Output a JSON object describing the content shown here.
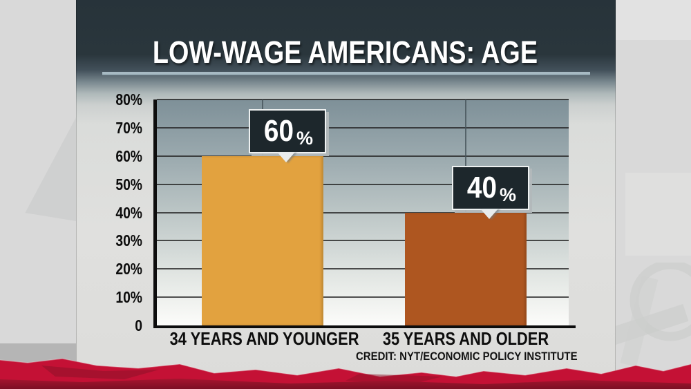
{
  "header": {
    "title": "LOW-WAGE AMERICANS: AGE"
  },
  "footer": {
    "credit": "CREDIT: NYT/ECONOMIC POLICY INSTITUTE"
  },
  "colors": {
    "panel_dark": "#2a363c",
    "divider": "#a7bac3",
    "callout_bg": "#1d272c",
    "torn_red_bright": "#c41135",
    "torn_red_dark": "#99142e",
    "bar_gold": "#e2a23f",
    "bar_rust": "#ae5620"
  },
  "chart_data": {
    "type": "bar",
    "title": "LOW-WAGE AMERICANS: AGE",
    "categories": [
      "34 YEARS AND YOUNGER",
      "35 YEARS AND OLDER"
    ],
    "values": [
      60,
      40
    ],
    "value_labels": [
      "60%",
      "40%"
    ],
    "bar_colors": [
      "#e2a23f",
      "#ae5620"
    ],
    "ylim": [
      0,
      80
    ],
    "yticks": [
      "80%",
      "70%",
      "60%",
      "50%",
      "40%",
      "30%",
      "20%",
      "10%",
      "0"
    ],
    "ytick_values": [
      80,
      70,
      60,
      50,
      40,
      30,
      20,
      10,
      0
    ],
    "xlabel": "",
    "ylabel": "",
    "grid": true,
    "legend": false,
    "source": "CREDIT: NYT/ECONOMIC POLICY INSTITUTE"
  }
}
